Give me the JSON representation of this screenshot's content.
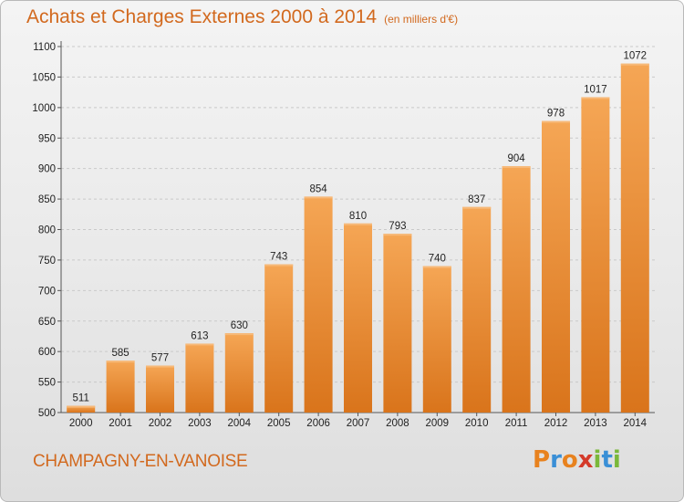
{
  "header": {
    "title": "Achats et Charges Externes 2000 à 2014",
    "unit": "(en milliers d'€)"
  },
  "footer": {
    "commune": "CHAMPAGNY-EN-VANOISE",
    "logo_text": "Proxiti",
    "logo_colors": [
      "#e8821e",
      "#3a8fd6",
      "#e8821e",
      "#d43a2a",
      "#7ab83a",
      "#3a8fd6",
      "#7ab83a"
    ]
  },
  "colors": {
    "bar_light": "#f5a655",
    "bar_dark": "#d9741b",
    "title": "#d2691e"
  },
  "chart_data": {
    "type": "bar",
    "categories": [
      "2000",
      "2001",
      "2002",
      "2003",
      "2004",
      "2005",
      "2006",
      "2007",
      "2008",
      "2009",
      "2010",
      "2011",
      "2012",
      "2013",
      "2014"
    ],
    "values": [
      511,
      585,
      577,
      613,
      630,
      743,
      854,
      810,
      793,
      740,
      837,
      904,
      978,
      1017,
      1072
    ],
    "title": "Achats et Charges Externes 2000 à 2014",
    "xlabel": "",
    "ylabel": "",
    "ylim": [
      500,
      1100
    ],
    "yticks": [
      500,
      550,
      600,
      650,
      700,
      750,
      800,
      850,
      900,
      950,
      1000,
      1050,
      1100
    ],
    "grid": true,
    "legend": "none"
  }
}
